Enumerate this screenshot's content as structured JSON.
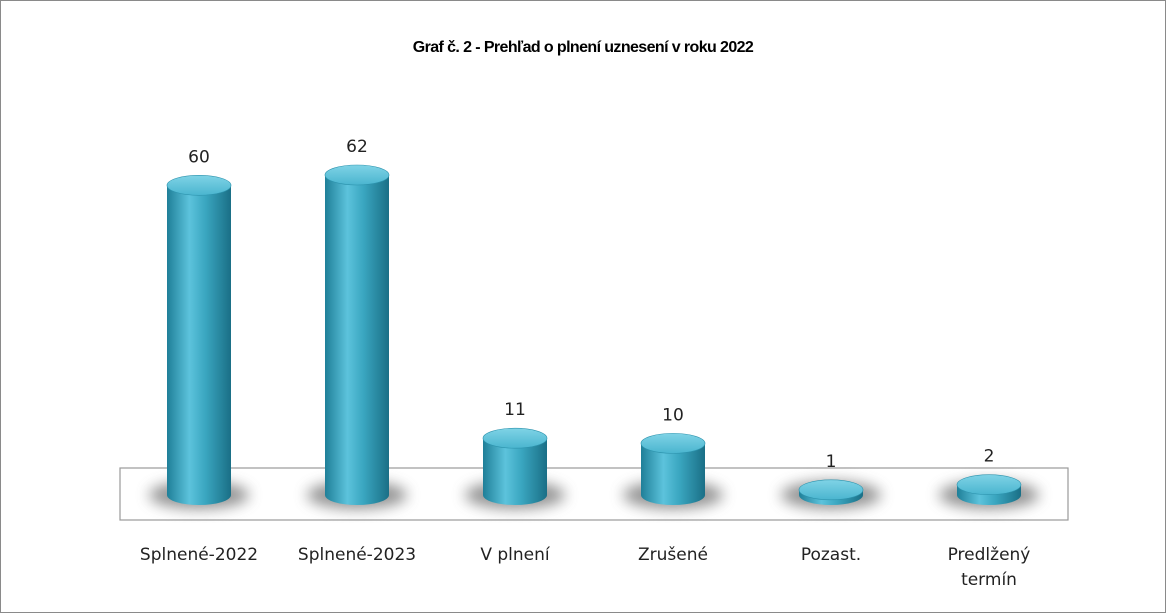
{
  "chart_data": {
    "type": "bar",
    "title": "Graf č. 2 - Prehľad o plnení uznesení v roku 2022",
    "categories": [
      "Splnené-2022",
      "Splnené-2023",
      "V plnení",
      "Zrušené",
      "Pozast.",
      "Predlžený termín"
    ],
    "values": [
      60,
      62,
      11,
      10,
      1,
      2
    ],
    "color": "#3aa6c0"
  }
}
